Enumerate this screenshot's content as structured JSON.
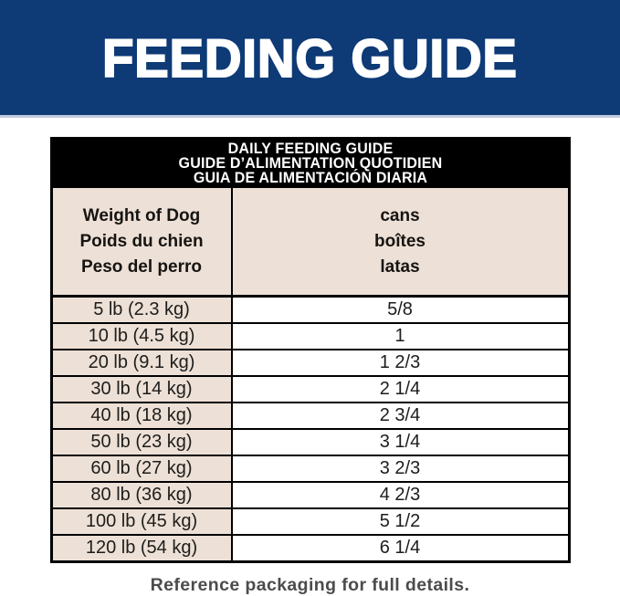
{
  "banner": {
    "title": "FEEDING GUIDE"
  },
  "table": {
    "title_lines": [
      "DAILY FEEDING GUIDE",
      "GUIDE D’ALIMENTATION QUOTIDIEN",
      "GUIA DE ALIMENTACIÓN DIARIA"
    ],
    "col_headers": {
      "weight_lines": [
        "Weight of Dog",
        "Poids du chien",
        "Peso del perro"
      ],
      "cans_lines": [
        "cans",
        "boîtes",
        "latas"
      ]
    },
    "rows": [
      {
        "weight": "5 lb (2.3 kg)",
        "cans": "5/8"
      },
      {
        "weight": "10 lb (4.5 kg)",
        "cans": "1"
      },
      {
        "weight": "20 lb (9.1 kg)",
        "cans": "1 2/3"
      },
      {
        "weight": "30 lb (14 kg)",
        "cans": "2 1/4"
      },
      {
        "weight": "40 lb (18 kg)",
        "cans": "2 3/4"
      },
      {
        "weight": "50 lb (23 kg)",
        "cans": "3 1/4"
      },
      {
        "weight": "60 lb (27 kg)",
        "cans": "3 2/3"
      },
      {
        "weight": "80 lb (36 kg)",
        "cans": "4 2/3"
      },
      {
        "weight": "100 lb (45 kg)",
        "cans": "5 1/2"
      },
      {
        "weight": "120 lb (54 kg)",
        "cans": "6 1/4"
      }
    ]
  },
  "footer": {
    "note": "Reference packaging for full details."
  },
  "colors": {
    "navy": "#0e3a76",
    "banner_underline": "#bfc9de",
    "beige": "#ede0d6",
    "band_black": "#000000",
    "row_text": "#1d1d1b",
    "footer_text": "#4c4c4e"
  }
}
